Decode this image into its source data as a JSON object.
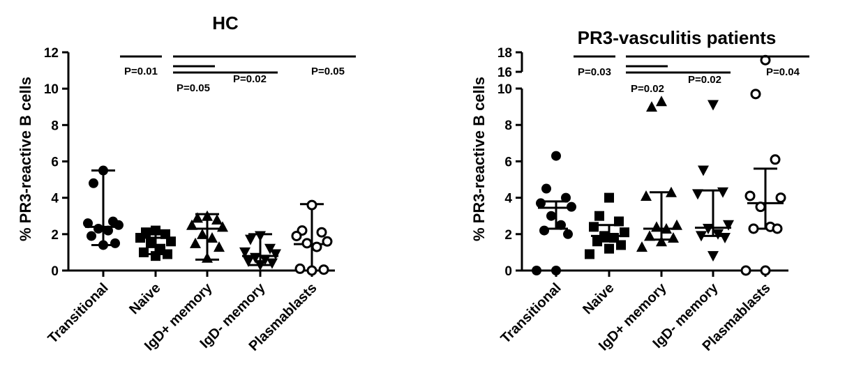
{
  "chart_data": [
    {
      "type": "scatter",
      "title": "HC",
      "ylabel": "% PR3-reactive B cells",
      "xlabel": "",
      "ylim": [
        0,
        12
      ],
      "yticks": [
        0,
        2,
        4,
        6,
        8,
        10,
        12
      ],
      "categories": [
        "Transitional",
        "Naive",
        "IgD+ memory",
        "IgD- memory",
        "Plasmablasts"
      ],
      "markers": [
        "filled-circle",
        "filled-square",
        "filled-triangle-up",
        "filled-triangle-down",
        "open-circle"
      ],
      "series": [
        {
          "values": [
            5.5,
            4.8,
            2.7,
            2.6,
            2.5,
            2.3,
            2.2,
            1.9,
            1.5,
            1.4
          ],
          "summary": {
            "median": 2.4,
            "low": 1.4,
            "high": 5.5
          }
        },
        {
          "values": [
            2.2,
            2.1,
            2.0,
            1.8,
            1.6,
            1.5,
            1.2,
            1.0,
            0.9,
            0.8
          ],
          "summary": {
            "median": 1.8,
            "low": 0.9,
            "high": 2.2
          }
        },
        {
          "values": [
            3.0,
            2.9,
            2.8,
            2.5,
            2.4,
            2.0,
            1.8,
            1.5,
            1.3,
            0.7
          ],
          "summary": {
            "median": 2.3,
            "low": 0.6,
            "high": 3.1
          }
        },
        {
          "values": [
            1.9,
            1.7,
            1.2,
            1.0,
            0.9,
            0.7,
            0.6,
            0.5,
            0.4,
            0.3
          ],
          "summary": {
            "median": 0.8,
            "low": 0.3,
            "high": 2.0
          }
        },
        {
          "values": [
            3.6,
            2.2,
            2.1,
            1.9,
            1.6,
            1.5,
            1.3,
            0.1,
            0.05,
            0.0
          ],
          "summary": {
            "median": 1.45,
            "low": 0.0,
            "high": 3.65
          }
        }
      ],
      "comparisons": [
        {
          "groups": [
            0,
            1
          ],
          "label": "P=0.01"
        },
        {
          "groups": [
            1,
            2
          ],
          "label": "P=0.05"
        },
        {
          "groups": [
            1,
            3
          ],
          "label": "P=0.02"
        },
        {
          "groups": [
            1,
            4
          ],
          "label": "P=0.05"
        }
      ]
    },
    {
      "type": "scatter",
      "title": "PR3-vasculitis patients",
      "ylabel": "% PR3-reactive B cells",
      "xlabel": "",
      "ylim": [
        0,
        18
      ],
      "axis_break": [
        10,
        16
      ],
      "yticks": [
        0,
        2,
        4,
        6,
        8,
        10,
        16,
        18
      ],
      "categories": [
        "Transitional",
        "Naive",
        "IgD+ memory",
        "IgD- memory",
        "Plasmablasts"
      ],
      "markers": [
        "filled-circle",
        "filled-square",
        "filled-triangle-up",
        "filled-triangle-down",
        "open-circle"
      ],
      "series": [
        {
          "values": [
            6.3,
            4.5,
            4.0,
            3.7,
            3.5,
            3.0,
            2.5,
            2.2,
            2.0,
            0.0,
            0.0
          ],
          "summary": {
            "median": 3.45,
            "low": 2.3,
            "high": 3.8
          }
        },
        {
          "values": [
            4.0,
            3.0,
            2.7,
            2.4,
            2.1,
            1.9,
            1.8,
            1.6,
            1.4,
            1.2,
            0.9
          ],
          "summary": {
            "median": 1.9,
            "low": 1.6,
            "high": 2.5
          }
        },
        {
          "values": [
            9.3,
            9.0,
            4.3,
            4.1,
            2.5,
            2.4,
            2.3,
            1.9,
            1.8,
            1.6,
            1.3
          ],
          "summary": {
            "median": 2.3,
            "low": 1.7,
            "high": 4.3
          }
        },
        {
          "values": [
            9.1,
            5.5,
            4.3,
            4.2,
            2.5,
            2.3,
            2.0,
            1.9,
            1.8,
            0.8
          ],
          "summary": {
            "median": 2.35,
            "low": 1.9,
            "high": 4.4
          }
        },
        {
          "values": [
            17.2,
            9.7,
            6.1,
            4.1,
            4.0,
            3.5,
            2.4,
            2.3,
            2.3,
            0.0,
            0.0
          ],
          "summary": {
            "median": 3.7,
            "low": 2.3,
            "high": 5.6
          }
        }
      ],
      "comparisons": [
        {
          "groups": [
            0,
            1
          ],
          "label": "P=0.03"
        },
        {
          "groups": [
            1,
            2
          ],
          "label": "P=0.02"
        },
        {
          "groups": [
            1,
            3
          ],
          "label": "P=0.02"
        },
        {
          "groups": [
            1,
            4
          ],
          "label": "P=0.04"
        }
      ]
    }
  ]
}
